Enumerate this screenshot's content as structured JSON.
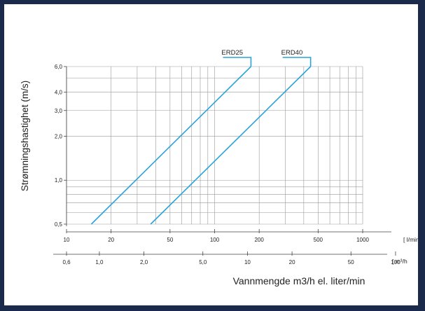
{
  "chart_data": {
    "type": "line",
    "ylabel": "Strømningshastighet (m/s)",
    "xlabel": "Vannmengde m3/h el. liter/min",
    "y_scale": "log",
    "x_scale": "log",
    "ylim": [
      0.5,
      6.0
    ],
    "y_ticks": [
      {
        "value": 0.5,
        "label": "0,5"
      },
      {
        "value": 1.0,
        "label": "1,0"
      },
      {
        "value": 2.0,
        "label": "2,0"
      },
      {
        "value": 3.0,
        "label": "3,0"
      },
      {
        "value": 4.0,
        "label": "4,0"
      },
      {
        "value": 6.0,
        "label": "6,0"
      }
    ],
    "x_axis_lmin": {
      "unit": "[ l/min",
      "range": [
        10,
        1000
      ],
      "ticks": [
        {
          "value": 10,
          "label": "10"
        },
        {
          "value": 20,
          "label": "20"
        },
        {
          "value": 50,
          "label": "50"
        },
        {
          "value": 100,
          "label": "100"
        },
        {
          "value": 200,
          "label": "200"
        },
        {
          "value": 500,
          "label": "500"
        },
        {
          "value": 1000,
          "label": "1000"
        }
      ]
    },
    "x_axis_m3h": {
      "unit": "[ m³/h",
      "ticks": [
        {
          "value": 0.6,
          "label": "0,6"
        },
        {
          "value": 1.0,
          "label": "1,0"
        },
        {
          "value": 2.0,
          "label": "2,0"
        },
        {
          "value": 5.0,
          "label": "5,0"
        },
        {
          "value": 10,
          "label": "10"
        },
        {
          "value": 20,
          "label": "20"
        },
        {
          "value": 50,
          "label": "50"
        },
        {
          "value": 100,
          "label": "100"
        }
      ]
    },
    "grid": true,
    "series": [
      {
        "name": "ERD25",
        "color": "#29a3dc",
        "x_lmin": [
          14.7,
          176
        ],
        "y": [
          0.5,
          6.0
        ]
      },
      {
        "name": "ERD40",
        "color": "#29a3dc",
        "x_lmin": [
          37,
          445
        ],
        "y": [
          0.5,
          6.0
        ]
      }
    ]
  }
}
